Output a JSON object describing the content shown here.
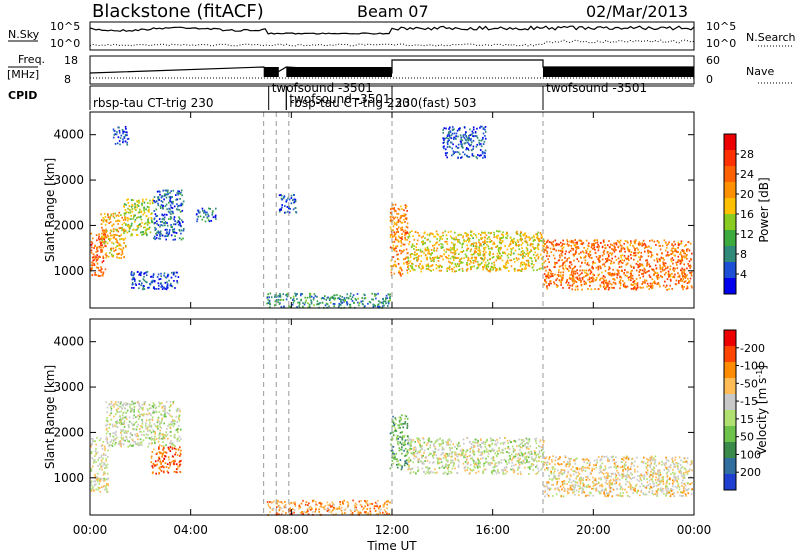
{
  "header": {
    "station": "Blackstone (fitACF)",
    "beam": "Beam 07",
    "date": "02/Mar/2013"
  },
  "strip_labels": {
    "nsky": "N.Sky",
    "nsearch": "N.Search",
    "freq_line1": "Freq.",
    "freq_line2": "[MHz]",
    "nave": "Nave",
    "cpid": "CPID",
    "nsky_ticks": [
      "10^5",
      "10^0"
    ],
    "freq_ticks": [
      "18",
      "8"
    ],
    "nave_ticks": [
      "60",
      "0"
    ],
    "nsearch_ticks": [
      "10^5",
      "10^0"
    ]
  },
  "cpid_segments": [
    {
      "start_hour": 0.0,
      "label": "rbsp-tau CT-trig 230",
      "row": "low"
    },
    {
      "start_hour": 7.1,
      "label": "twofsound -3501",
      "row": "high"
    },
    {
      "start_hour": 7.8,
      "label": "twofsound -3501",
      "row": "mid"
    },
    {
      "start_hour": 7.8,
      "label": "rbsp-tau CT-trig 230",
      "row": "low"
    },
    {
      "start_hour": 12.0,
      "label": "230(fast) 503",
      "row": "low"
    },
    {
      "start_hour": 18.0,
      "label": "twofsound -3501",
      "row": "high"
    }
  ],
  "chart_data": [
    {
      "type": "heatmap",
      "panel": "power",
      "ylabel": "Slant Range [km]",
      "xlabel": "Time UT",
      "x_ticks": [
        "00:00",
        "04:00",
        "08:00",
        "12:00",
        "16:00",
        "20:00",
        "00:00"
      ],
      "x_range_hours": [
        0,
        24
      ],
      "y_ticks": [
        1000,
        2000,
        3000,
        4000
      ],
      "y_range_km": [
        180,
        4500
      ],
      "colorbar": {
        "label": "Power [dB]",
        "ticks": [
          "4",
          "8",
          "12",
          "16",
          "20",
          "24",
          "28"
        ],
        "colors": [
          "#0000ee",
          "#1d4fd6",
          "#2f8a7a",
          "#3caa3c",
          "#88cc22",
          "#ffc000",
          "#ff9000",
          "#ff6000",
          "#ff3000",
          "#ee0000"
        ]
      },
      "echo_regions": [
        {
          "t0": 0.0,
          "t1": 0.6,
          "r0": 900,
          "r1": 1900,
          "level": 0.8
        },
        {
          "t0": 0.4,
          "t1": 1.4,
          "r0": 1300,
          "r1": 2300,
          "level": 0.6
        },
        {
          "t0": 1.3,
          "t1": 2.5,
          "r0": 1800,
          "r1": 2600,
          "level": 0.45
        },
        {
          "t0": 2.5,
          "t1": 3.7,
          "r0": 1700,
          "r1": 2800,
          "level": 0.15
        },
        {
          "t0": 0.9,
          "t1": 1.5,
          "r0": 3800,
          "r1": 4200,
          "level": 0.1
        },
        {
          "t0": 4.2,
          "t1": 5.0,
          "r0": 2100,
          "r1": 2400,
          "level": 0.15
        },
        {
          "t0": 1.6,
          "t1": 3.5,
          "r0": 600,
          "r1": 1000,
          "level": 0.1
        },
        {
          "t0": 7.5,
          "t1": 8.2,
          "r0": 2300,
          "r1": 2700,
          "level": 0.1
        },
        {
          "t0": 7.0,
          "t1": 11.9,
          "r0": 200,
          "r1": 520,
          "level": 0.25
        },
        {
          "t0": 11.9,
          "t1": 12.6,
          "r0": 900,
          "r1": 2500,
          "level": 0.7
        },
        {
          "t0": 12.6,
          "t1": 18.0,
          "r0": 1000,
          "r1": 1900,
          "level": 0.55
        },
        {
          "t0": 14.0,
          "t1": 15.7,
          "r0": 3500,
          "r1": 4200,
          "level": 0.1
        },
        {
          "t0": 18.0,
          "t1": 23.9,
          "r0": 600,
          "r1": 1700,
          "level": 0.75
        }
      ]
    },
    {
      "type": "heatmap",
      "panel": "velocity",
      "ylabel": "Slant Range [km]",
      "xlabel": "Time UT",
      "x_ticks": [
        "00:00",
        "04:00",
        "08:00",
        "12:00",
        "16:00",
        "20:00",
        "00:00"
      ],
      "x_range_hours": [
        0,
        24
      ],
      "y_ticks": [
        1000,
        2000,
        3000,
        4000
      ],
      "y_range_km": [
        180,
        4500
      ],
      "colorbar": {
        "label": "Velocity [m s^-1]",
        "ticks": [
          "200",
          "100",
          "50",
          "15",
          "-15",
          "-50",
          "-100",
          "-200"
        ],
        "colors": [
          "#1f3fd0",
          "#2f6e9e",
          "#3a8a4a",
          "#6cc24a",
          "#b0e070",
          "#c8c8c8",
          "#ffbb55",
          "#ff8c00",
          "#ff4400",
          "#ee0000"
        ]
      },
      "echo_regions": [
        {
          "t0": 0.0,
          "t1": 0.7,
          "r0": 700,
          "r1": 1900,
          "level": 0.55
        },
        {
          "t0": 0.6,
          "t1": 3.6,
          "r0": 1700,
          "r1": 2700,
          "level": 0.5
        },
        {
          "t0": 2.4,
          "t1": 3.6,
          "r0": 1100,
          "r1": 1700,
          "level": 0.85
        },
        {
          "t0": 7.0,
          "t1": 11.9,
          "r0": 200,
          "r1": 520,
          "level": 0.75
        },
        {
          "t0": 11.9,
          "t1": 12.6,
          "r0": 1200,
          "r1": 2400,
          "level": 0.3
        },
        {
          "t0": 12.6,
          "t1": 18.0,
          "r0": 1100,
          "r1": 1900,
          "level": 0.5
        },
        {
          "t0": 18.0,
          "t1": 23.9,
          "r0": 600,
          "r1": 1500,
          "level": 0.6
        }
      ]
    }
  ],
  "dashed_mode_change_hours": [
    6.9,
    7.4,
    7.9,
    12.0,
    18.0
  ]
}
